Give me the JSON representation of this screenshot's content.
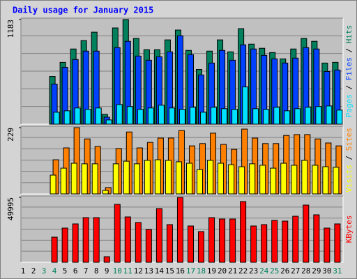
{
  "legend_separator": "/",
  "chart_data": [
    {
      "type": "bar",
      "title": "Daily usage for January 2015",
      "ylim": [
        0,
        1183
      ],
      "yticks": [
        1183
      ],
      "series": [
        {
          "name": "Hits",
          "color": "#00805c",
          "values": [
            0,
            0,
            0,
            540,
            699,
            850,
            945,
            1040,
            111,
            1088,
            1183,
            969,
            842,
            842,
            953,
            1064,
            834,
            619,
            826,
            953,
            818,
            1080,
            905,
            858,
            810,
            738,
            850,
            969,
            937,
            691,
            699
          ]
        },
        {
          "name": "Files",
          "color": "#0040ff",
          "values": [
            0,
            0,
            0,
            453,
            643,
            731,
            826,
            826,
            79,
            866,
            937,
            770,
            723,
            762,
            818,
            1000,
            786,
            556,
            691,
            834,
            723,
            897,
            850,
            778,
            738,
            691,
            747,
            866,
            850,
            596,
            612
          ]
        },
        {
          "name": "Pages",
          "color": "#00e0ff",
          "values": [
            0,
            0,
            0,
            135,
            151,
            183,
            167,
            183,
            48,
            222,
            199,
            167,
            183,
            214,
            183,
            167,
            191,
            135,
            191,
            175,
            167,
            421,
            175,
            167,
            191,
            151,
            175,
            191,
            199,
            206,
            159
          ]
        }
      ]
    },
    {
      "type": "bar",
      "ylim": [
        0,
        229
      ],
      "yticks": [
        229
      ],
      "series": [
        {
          "name": "Sites",
          "color": "#ff8000",
          "values": [
            0,
            0,
            0,
            118,
            159,
            229,
            190,
            164,
            22,
            157,
            214,
            159,
            178,
            193,
            193,
            219,
            166,
            174,
            210,
            171,
            154,
            224,
            193,
            174,
            174,
            202,
            205,
            205,
            190,
            176,
            166
          ]
        },
        {
          "name": "Visits",
          "color": "#ffff00",
          "values": [
            0,
            0,
            0,
            65,
            89,
            106,
            104,
            104,
            12,
            104,
            113,
            104,
            116,
            118,
            116,
            111,
            106,
            84,
            116,
            106,
            101,
            94,
            104,
            99,
            89,
            106,
            99,
            116,
            99,
            94,
            92
          ]
        }
      ]
    },
    {
      "type": "bar",
      "ylim": [
        0,
        49995
      ],
      "yticks": [
        49995
      ],
      "categories": [
        "1",
        "2",
        "3",
        "4",
        "5",
        "6",
        "7",
        "8",
        "9",
        "10",
        "11",
        "12",
        "13",
        "14",
        "15",
        "16",
        "17",
        "18",
        "19",
        "20",
        "21",
        "22",
        "23",
        "24",
        "25",
        "26",
        "27",
        "28",
        "29",
        "30",
        "31"
      ],
      "category_colors": [
        "#000000",
        "#000000",
        "#00805c",
        "#00805c",
        "#000000",
        "#000000",
        "#000000",
        "#000000",
        "#000000",
        "#00805c",
        "#00805c",
        "#000000",
        "#000000",
        "#000000",
        "#000000",
        "#000000",
        "#00805c",
        "#00805c",
        "#000000",
        "#000000",
        "#000000",
        "#000000",
        "#000000",
        "#00805c",
        "#00805c",
        "#000000",
        "#000000",
        "#000000",
        "#000000",
        "#000000",
        "#00805c"
      ],
      "series": [
        {
          "name": "KBytes",
          "color": "#ff0000",
          "values": [
            0,
            0,
            0,
            19354,
            26342,
            29568,
            34406,
            34406,
            4301,
            44621,
            34944,
            30643,
            25267,
            41395,
            29030,
            49995,
            27967,
            23666,
            34406,
            33331,
            33331,
            46786,
            27967,
            29030,
            32256,
            31718,
            35482,
            44083,
            36557,
            26342,
            29568
          ]
        }
      ]
    }
  ]
}
